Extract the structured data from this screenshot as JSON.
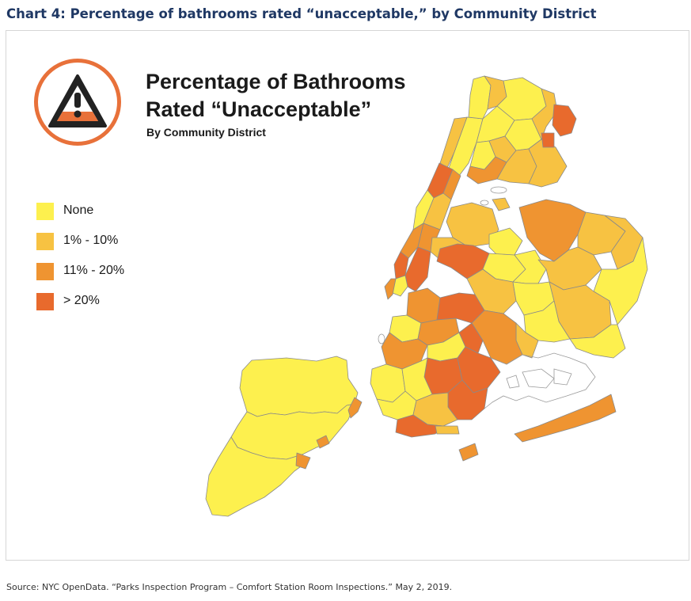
{
  "heading": "Chart 4: Percentage of bathrooms rated “unacceptable,” by Community District",
  "map": {
    "title_line1": "Percentage of Bathrooms",
    "title_line2": "Rated “Unacceptable”",
    "subtitle": "By Community District",
    "icon": "warning-triangle-icon"
  },
  "legend": [
    {
      "label": "None",
      "color": "#fdf04e"
    },
    {
      "label": "1% - 10%",
      "color": "#f7c242"
    },
    {
      "label": "11% - 20%",
      "color": "#ef9431"
    },
    {
      "label": "> 20%",
      "color": "#e86a2d"
    }
  ],
  "source": "Source: NYC OpenData. “Parks Inspection Program – Comfort Station Room Inspections.” May 2, 2019."
}
